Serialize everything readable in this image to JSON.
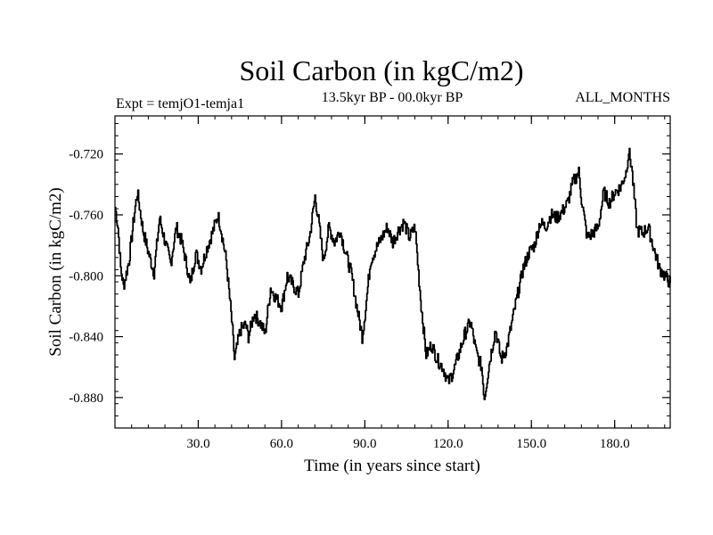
{
  "chart_data": {
    "type": "line",
    "title": "Soil Carbon (in kgC/m2)",
    "subtitle_left": "Expt = temjO1-temja1",
    "subtitle_center": "13.5kyr BP - 00.0kyr BP",
    "subtitle_right": "ALL_MONTHS",
    "xlabel": "Time (in years since start)",
    "ylabel": "Soil Carbon (in kgC/m2)",
    "xlim": [
      0,
      200
    ],
    "ylim": [
      -0.9,
      -0.695
    ],
    "xticks": [
      30,
      60,
      90,
      120,
      150,
      180
    ],
    "xtick_labels": [
      "30.0",
      "60.0",
      "90.0",
      "120.0",
      "150.0",
      "180.0"
    ],
    "yticks": [
      -0.72,
      -0.76,
      -0.8,
      -0.84,
      -0.88
    ],
    "ytick_labels": [
      "-0.720",
      "-0.760",
      "-0.800",
      "-0.840",
      "-0.880"
    ],
    "series": [
      {
        "name": "Soil Carbon",
        "x": [
          0,
          1,
          2,
          3,
          5,
          7,
          8,
          10,
          12,
          14,
          16,
          18,
          20,
          22,
          24,
          26,
          27,
          29,
          31,
          33,
          35,
          37,
          38,
          40,
          42,
          43,
          45,
          47,
          48,
          50,
          52,
          54,
          56,
          58,
          60,
          62,
          64,
          66,
          68,
          70,
          72,
          73,
          75,
          77,
          79,
          81,
          83,
          85,
          87,
          89,
          90,
          92,
          94,
          96,
          98,
          100,
          102,
          104,
          106,
          108,
          110,
          112,
          114,
          116,
          118,
          120,
          122,
          124,
          126,
          128,
          130,
          132,
          133,
          135,
          137,
          139,
          141,
          143,
          145,
          147,
          149,
          151,
          153,
          155,
          157,
          159,
          161,
          163,
          165,
          167,
          168,
          170,
          172,
          174,
          176,
          178,
          180,
          182,
          184,
          185,
          186,
          188,
          190,
          192,
          194,
          196,
          198,
          200
        ],
        "values": [
          -0.755,
          -0.768,
          -0.795,
          -0.807,
          -0.79,
          -0.758,
          -0.745,
          -0.77,
          -0.785,
          -0.798,
          -0.762,
          -0.778,
          -0.792,
          -0.768,
          -0.778,
          -0.795,
          -0.806,
          -0.785,
          -0.795,
          -0.782,
          -0.772,
          -0.76,
          -0.768,
          -0.79,
          -0.83,
          -0.855,
          -0.836,
          -0.832,
          -0.84,
          -0.825,
          -0.83,
          -0.838,
          -0.808,
          -0.815,
          -0.82,
          -0.8,
          -0.806,
          -0.812,
          -0.79,
          -0.775,
          -0.748,
          -0.76,
          -0.79,
          -0.768,
          -0.778,
          -0.77,
          -0.785,
          -0.798,
          -0.82,
          -0.84,
          -0.825,
          -0.79,
          -0.782,
          -0.775,
          -0.768,
          -0.778,
          -0.77,
          -0.765,
          -0.775,
          -0.768,
          -0.815,
          -0.852,
          -0.845,
          -0.855,
          -0.86,
          -0.87,
          -0.862,
          -0.85,
          -0.838,
          -0.83,
          -0.85,
          -0.86,
          -0.88,
          -0.855,
          -0.835,
          -0.855,
          -0.848,
          -0.83,
          -0.812,
          -0.795,
          -0.785,
          -0.78,
          -0.765,
          -0.768,
          -0.76,
          -0.762,
          -0.758,
          -0.752,
          -0.738,
          -0.732,
          -0.75,
          -0.775,
          -0.772,
          -0.768,
          -0.745,
          -0.752,
          -0.745,
          -0.742,
          -0.732,
          -0.718,
          -0.728,
          -0.77,
          -0.772,
          -0.768,
          -0.782,
          -0.795,
          -0.8,
          -0.805
        ]
      }
    ]
  }
}
